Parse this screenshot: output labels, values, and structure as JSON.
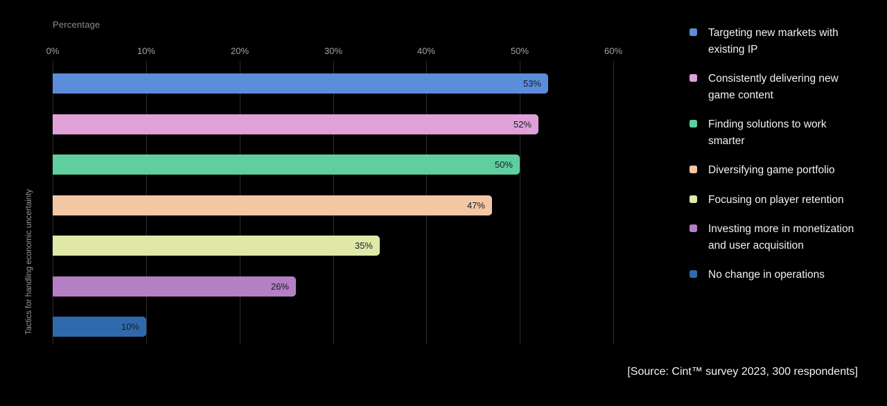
{
  "chart_data": {
    "type": "bar",
    "orientation": "horizontal",
    "xlabel": "Percentage",
    "ylabel": "Tactics for handling economic uncertainty",
    "xlim": [
      0,
      60
    ],
    "x_ticks": [
      "0%",
      "10%",
      "20%",
      "30%",
      "40%",
      "50%",
      "60%"
    ],
    "x_tick_values": [
      0,
      10,
      20,
      30,
      40,
      50,
      60
    ],
    "grid": "vertical-only",
    "legend_position": "right",
    "categories": [
      "Targeting new markets with existing IP",
      "Consistently delivering new game content",
      "Finding solutions to work smarter",
      "Diversifying game portfolio",
      "Focusing on player retention",
      "Investing more in monetization and user acquisition",
      "No change in operations"
    ],
    "values": [
      53,
      52,
      50,
      47,
      35,
      26,
      10
    ],
    "value_labels": [
      "53%",
      "52%",
      "50%",
      "47%",
      "35%",
      "26%",
      "10%"
    ],
    "colors": [
      "#5b8ddb",
      "#e0a1d9",
      "#5fcfa0",
      "#f4c7a4",
      "#e1e9a9",
      "#b47fc4",
      "#2e6aab"
    ],
    "background_color": "#000000",
    "bar_label_color": "#161a26",
    "source": "[Source: Cint™ survey 2023, 300 respondents]"
  }
}
